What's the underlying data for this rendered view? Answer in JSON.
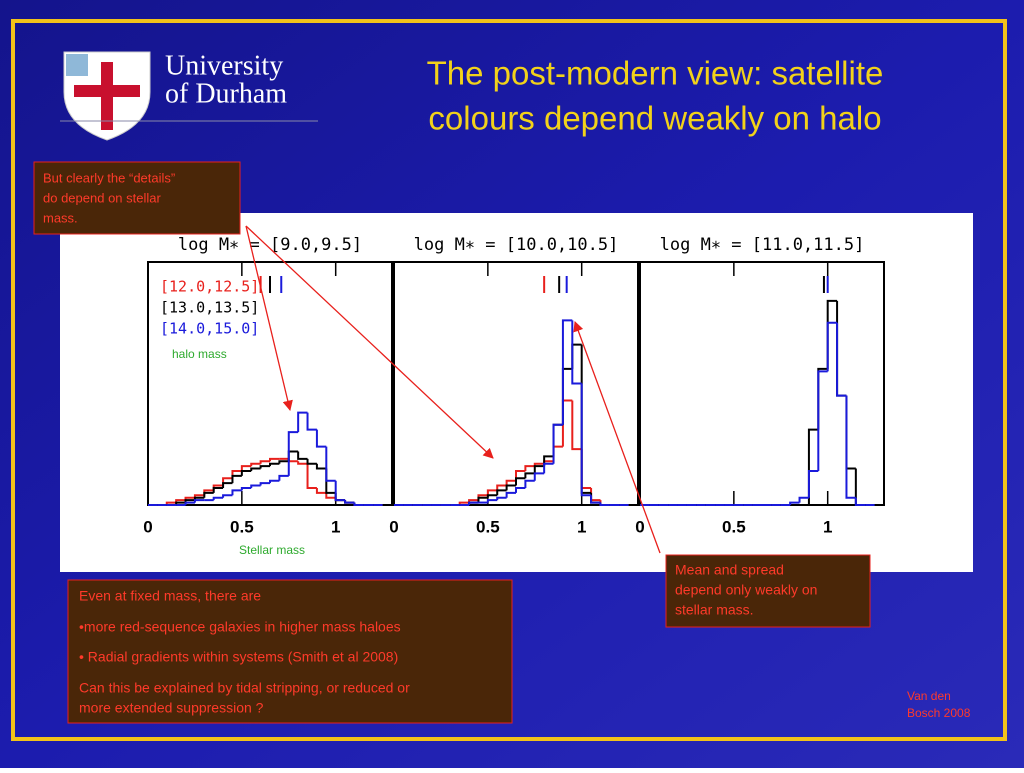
{
  "header": {
    "logo_text": [
      "University",
      "of Durham"
    ],
    "title": [
      "The post-modern view: satellite",
      "colours depend weakly on halo"
    ]
  },
  "callouts": [
    {
      "lines": [
        "But clearly the “details”",
        "do depend on stellar",
        "mass."
      ]
    },
    {
      "lines": [
        "Mean and spread",
        "depend only weakly on",
        "stellar mass."
      ]
    }
  ],
  "notes": [
    "Even at fixed mass, there are",
    "•more red-sequence  galaxies in higher mass haloes",
    "• Radial gradients within systems (Smith et al 2008)",
    "Can this be explained by tidal stripping, or reduced or",
    "more extended suppression ?"
  ],
  "credit": [
    "Van den",
    "Bosch 2008"
  ],
  "chart_data": [
    {
      "type": "histogram",
      "title": "log M∗ = [9.0,9.5]",
      "legend_title": "halo mass",
      "xlabel": "Stellar mass",
      "bins": [
        0,
        0.05,
        0.1,
        0.15,
        0.2,
        0.25,
        0.3,
        0.35,
        0.4,
        0.45,
        0.5,
        0.55,
        0.6,
        0.65,
        0.7,
        0.75,
        0.8,
        0.85,
        0.9,
        0.95,
        1,
        1.05,
        1.1,
        1.15,
        1.2,
        1.25
      ],
      "xlim": [
        0,
        1.3
      ],
      "xticks": [
        0,
        0.5,
        1
      ],
      "ylim": [
        0,
        1
      ],
      "series": [
        {
          "name": "[12.0,12.5]",
          "color": "#e8201c",
          "mean": 0.6,
          "values": [
            0,
            0,
            0.01,
            0.02,
            0.03,
            0.04,
            0.06,
            0.08,
            0.11,
            0.14,
            0.16,
            0.17,
            0.18,
            0.19,
            0.19,
            0.18,
            0.17,
            0.07,
            0.05,
            0.03,
            0.02,
            0.01,
            0,
            0,
            0
          ]
        },
        {
          "name": "[13.0,13.5]",
          "color": "#000000",
          "mean": 0.65,
          "values": [
            0,
            0,
            0,
            0.01,
            0.02,
            0.03,
            0.05,
            0.07,
            0.09,
            0.12,
            0.14,
            0.15,
            0.16,
            0.17,
            0.18,
            0.22,
            0.19,
            0.17,
            0.15,
            0.05,
            0.02,
            0.01,
            0,
            0,
            0
          ]
        },
        {
          "name": "[14.0,15.0]",
          "color": "#1a1adb",
          "mean": 0.71,
          "values": [
            0,
            0,
            0,
            0,
            0.01,
            0.02,
            0.02,
            0.03,
            0.04,
            0.06,
            0.07,
            0.08,
            0.09,
            0.1,
            0.12,
            0.3,
            0.38,
            0.31,
            0.24,
            0.1,
            0.02,
            0.01,
            0,
            0,
            0
          ]
        }
      ]
    },
    {
      "type": "histogram",
      "title": "log M∗ = [10.0,10.5]",
      "bins": [
        0,
        0.05,
        0.1,
        0.15,
        0.2,
        0.25,
        0.3,
        0.35,
        0.4,
        0.45,
        0.5,
        0.55,
        0.6,
        0.65,
        0.7,
        0.75,
        0.8,
        0.85,
        0.9,
        0.95,
        1,
        1.05,
        1.1,
        1.15,
        1.2,
        1.25
      ],
      "xlim": [
        0,
        1.3
      ],
      "xticks": [
        0,
        0.5,
        1
      ],
      "ylim": [
        0,
        1
      ],
      "series": [
        {
          "color": "#e8201c",
          "mean": 0.8,
          "values": [
            0,
            0,
            0,
            0,
            0,
            0,
            0,
            0.01,
            0.02,
            0.04,
            0.06,
            0.08,
            0.1,
            0.14,
            0.16,
            0.17,
            0.18,
            0.24,
            0.43,
            0.23,
            0.07,
            0.02,
            0,
            0,
            0
          ]
        },
        {
          "color": "#000000",
          "mean": 0.88,
          "values": [
            0,
            0,
            0,
            0,
            0,
            0,
            0,
            0,
            0.01,
            0.03,
            0.04,
            0.06,
            0.08,
            0.11,
            0.13,
            0.16,
            0.2,
            0.33,
            0.56,
            0.66,
            0.05,
            0.01,
            0,
            0,
            0
          ]
        },
        {
          "color": "#1a1adb",
          "mean": 0.92,
          "values": [
            0,
            0,
            0,
            0,
            0,
            0,
            0,
            0,
            0.01,
            0.01,
            0.02,
            0.03,
            0.05,
            0.07,
            0.1,
            0.13,
            0.17,
            0.33,
            0.76,
            0.5,
            0.04,
            0.01,
            0,
            0,
            0
          ]
        }
      ]
    },
    {
      "type": "histogram",
      "title": "log M∗ = [11.0,11.5]",
      "bins": [
        0,
        0.05,
        0.1,
        0.15,
        0.2,
        0.25,
        0.3,
        0.35,
        0.4,
        0.45,
        0.5,
        0.55,
        0.6,
        0.65,
        0.7,
        0.75,
        0.8,
        0.85,
        0.9,
        0.95,
        1,
        1.05,
        1.1,
        1.15,
        1.2,
        1.25
      ],
      "xlim": [
        0,
        1.3
      ],
      "xticks": [
        0,
        0.5,
        1
      ],
      "ylim": [
        0,
        1
      ],
      "series": [
        {
          "color": "#000000",
          "mean": 0.98,
          "values": [
            0,
            0,
            0,
            0,
            0,
            0,
            0,
            0,
            0,
            0,
            0,
            0,
            0,
            0,
            0,
            0,
            0,
            0,
            0.31,
            0.56,
            0.84,
            0.45,
            0.15,
            0,
            0
          ]
        },
        {
          "color": "#1a1adb",
          "mean": 1.0,
          "values": [
            0,
            0,
            0,
            0,
            0,
            0,
            0,
            0,
            0,
            0,
            0,
            0,
            0,
            0,
            0,
            0,
            0.01,
            0.03,
            0.14,
            0.55,
            0.75,
            0.45,
            0.03,
            0,
            0
          ]
        }
      ]
    }
  ]
}
